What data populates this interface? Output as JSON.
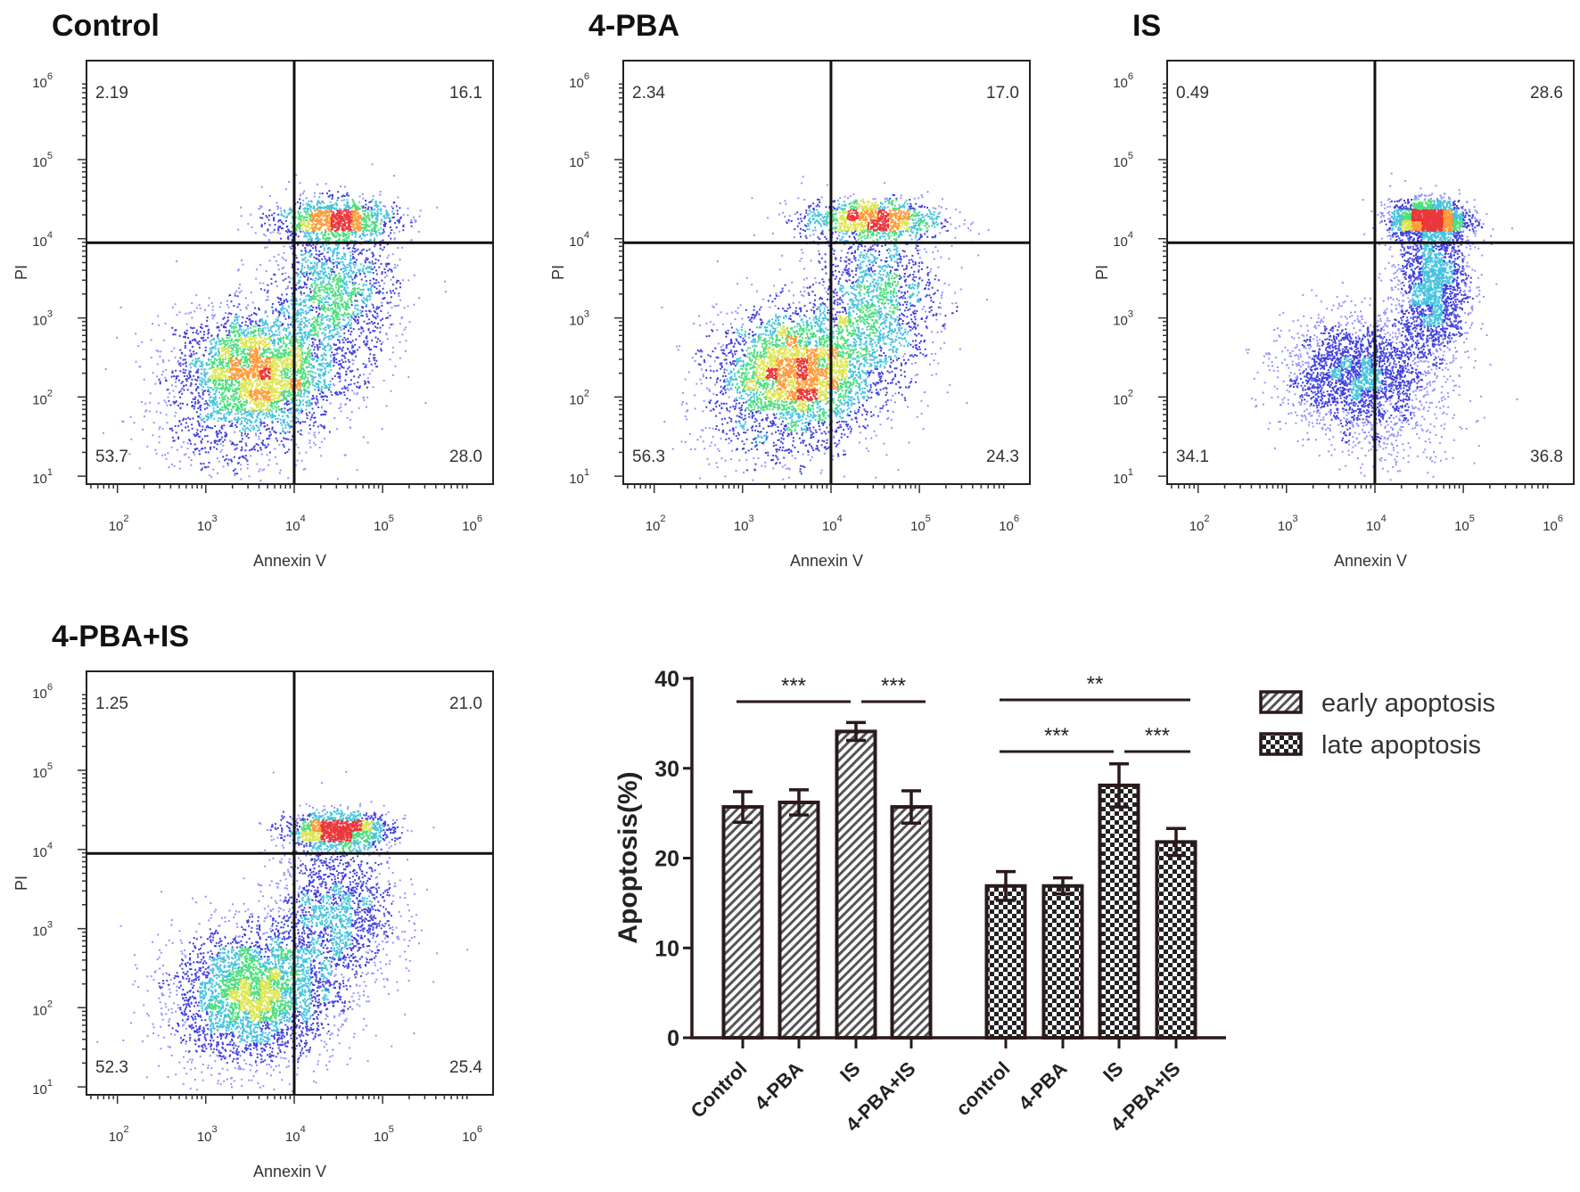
{
  "panels": [
    {
      "title": "Control",
      "x_label": "Annexin V",
      "y_label": "PI",
      "quadrants": {
        "upper_left": "2.19",
        "upper_right": "16.1",
        "lower_left": "53.7",
        "lower_right": "28.0"
      }
    },
    {
      "title": "4-PBA",
      "x_label": "Annexin V",
      "y_label": "PI",
      "quadrants": {
        "upper_left": "2.34",
        "upper_right": "17.0",
        "lower_left": "56.3",
        "lower_right": "24.3"
      }
    },
    {
      "title": "IS",
      "x_label": "Annexin V",
      "y_label": "PI",
      "quadrants": {
        "upper_left": "0.49",
        "upper_right": "28.6",
        "lower_left": "34.1",
        "lower_right": "36.8"
      }
    },
    {
      "title": "4-PBA+IS",
      "x_label": "Annexin V",
      "y_label": "PI",
      "quadrants": {
        "upper_left": "1.25",
        "upper_right": "21.0",
        "lower_left": "52.3",
        "lower_right": "25.4"
      }
    }
  ],
  "log_ticks": [
    "2",
    "3",
    "4",
    "5",
    "6"
  ],
  "y_log_ticks": [
    "1",
    "2",
    "3",
    "4",
    "5",
    "6"
  ],
  "chart_data": {
    "type": "bar",
    "ylabel": "Apoptosis(%)",
    "ylim": [
      0,
      40
    ],
    "yticks": [
      "0",
      "10",
      "20",
      "30",
      "40"
    ],
    "categories": [
      "Control",
      "4-PBA",
      "IS",
      "4-PBA+IS"
    ],
    "late_categories": [
      "control",
      "4-PBA",
      "IS",
      "4-PBA+IS"
    ],
    "legend_position": "top-right",
    "series": [
      {
        "name": "early apoptosis",
        "pattern": "hatch",
        "values": [
          25.7,
          26.2,
          34.1,
          25.7
        ],
        "errors": [
          1.7,
          1.4,
          1.0,
          1.8
        ]
      },
      {
        "name": "late apoptosis",
        "pattern": "checker",
        "values": [
          16.9,
          16.9,
          28.1,
          21.8
        ],
        "errors": [
          1.6,
          0.9,
          2.4,
          1.5
        ]
      }
    ],
    "significance": [
      {
        "group": "early",
        "from": 0,
        "to": 2,
        "label": "***"
      },
      {
        "group": "early",
        "from": 2,
        "to": 3,
        "label": "***"
      },
      {
        "group": "late",
        "from": 0,
        "to": 3,
        "label": "**"
      },
      {
        "group": "late",
        "from": 0,
        "to": 2,
        "label": "***"
      },
      {
        "group": "late",
        "from": 2,
        "to": 3,
        "label": "***"
      }
    ]
  }
}
